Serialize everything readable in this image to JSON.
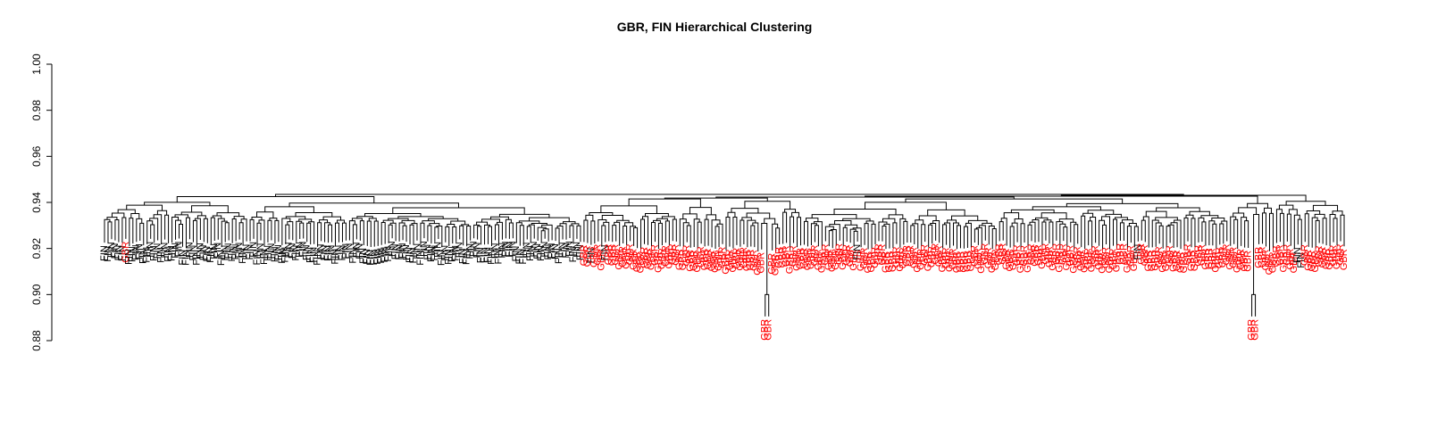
{
  "chart_data": {
    "type": "dendrogram",
    "title": "GBR, FIN Hierarchical Clustering",
    "xlabel": "",
    "ylabel": "",
    "ylim": [
      0.88,
      1.0
    ],
    "y_ticks": [
      "0.88",
      "0.90",
      "0.92",
      "0.94",
      "0.96",
      "0.98",
      "1.00"
    ],
    "grid": false,
    "colors": {
      "FIN": "#000000",
      "GBR": "#ff0000"
    },
    "root_height": 0.9435,
    "clusters": [
      {
        "group": "FIN",
        "merge_height": 0.9425,
        "leaf_height": 0.9245,
        "count": 135,
        "labels_with_GBR": [
          6
        ]
      },
      {
        "group": "GBR",
        "merge_height": 0.9415,
        "leaf_height": 0.9235,
        "count": 40,
        "labels_with_FIN": [
          2,
          6
        ]
      },
      {
        "group": "GBR",
        "merge_height": 0.9405,
        "leaf_height": 0.9225,
        "count": 22,
        "outlier_pair_height": 0.9,
        "outlier_leaf_height": 0.8905
      },
      {
        "group": "GBR",
        "merge_height": 0.9415,
        "leaf_height": 0.9235,
        "count": 120,
        "labels_with_FIN": [
          15,
          94
        ]
      },
      {
        "group": "GBR",
        "merge_height": 0.9395,
        "leaf_height": 0.9225,
        "count": 13,
        "outlier_pair_height": 0.9,
        "outlier_leaf_height": 0.8905
      },
      {
        "group": "GBR",
        "merge_height": 0.9405,
        "leaf_height": 0.9235,
        "count": 20,
        "labels_with_FIN": [
          6,
          7
        ]
      }
    ]
  }
}
